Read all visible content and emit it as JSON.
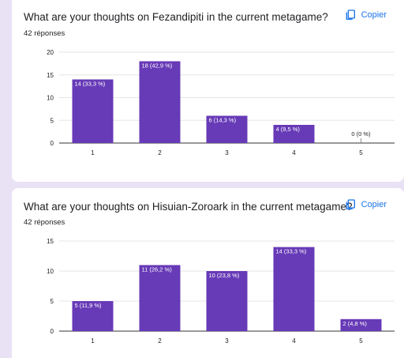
{
  "questions": [
    {
      "title": "What are your thoughts on Fezandipiti in the current metagame?",
      "responses": "42 réponses",
      "copy_label": "Copier"
    },
    {
      "title": "What are your thoughts on Hisuian-Zoroark in the current metagame?",
      "responses": "42 réponses",
      "copy_label": "Copier"
    }
  ],
  "colors": {
    "bar": "#673ab7",
    "label_on_bar": "#ffffff",
    "label_off_bar": "#202124",
    "grid": "#e6e6e6",
    "axis": "#333333",
    "link": "#1a73e8"
  },
  "chart_data": [
    {
      "type": "bar",
      "categories": [
        "1",
        "2",
        "3",
        "4",
        "5"
      ],
      "values": [
        14,
        18,
        6,
        4,
        0
      ],
      "data_labels": [
        "14 (33,3 %)",
        "18 (42,9 %)",
        "6 (14,3 %)",
        "4 (9,5 %)",
        "0 (0 %)"
      ],
      "yticks": [
        0,
        5,
        10,
        15,
        20
      ],
      "ylim": [
        0,
        20
      ],
      "grid": true,
      "legend": "none"
    },
    {
      "type": "bar",
      "categories": [
        "1",
        "2",
        "3",
        "4",
        "5"
      ],
      "values": [
        5,
        11,
        10,
        14,
        2
      ],
      "data_labels": [
        "5 (11,9 %)",
        "11 (26,2 %)",
        "10 (23,8 %)",
        "14 (33,3 %)",
        "2 (4,8 %)"
      ],
      "yticks": [
        0,
        5,
        10,
        15
      ],
      "ylim": [
        0,
        15
      ],
      "grid": true,
      "legend": "none"
    }
  ]
}
